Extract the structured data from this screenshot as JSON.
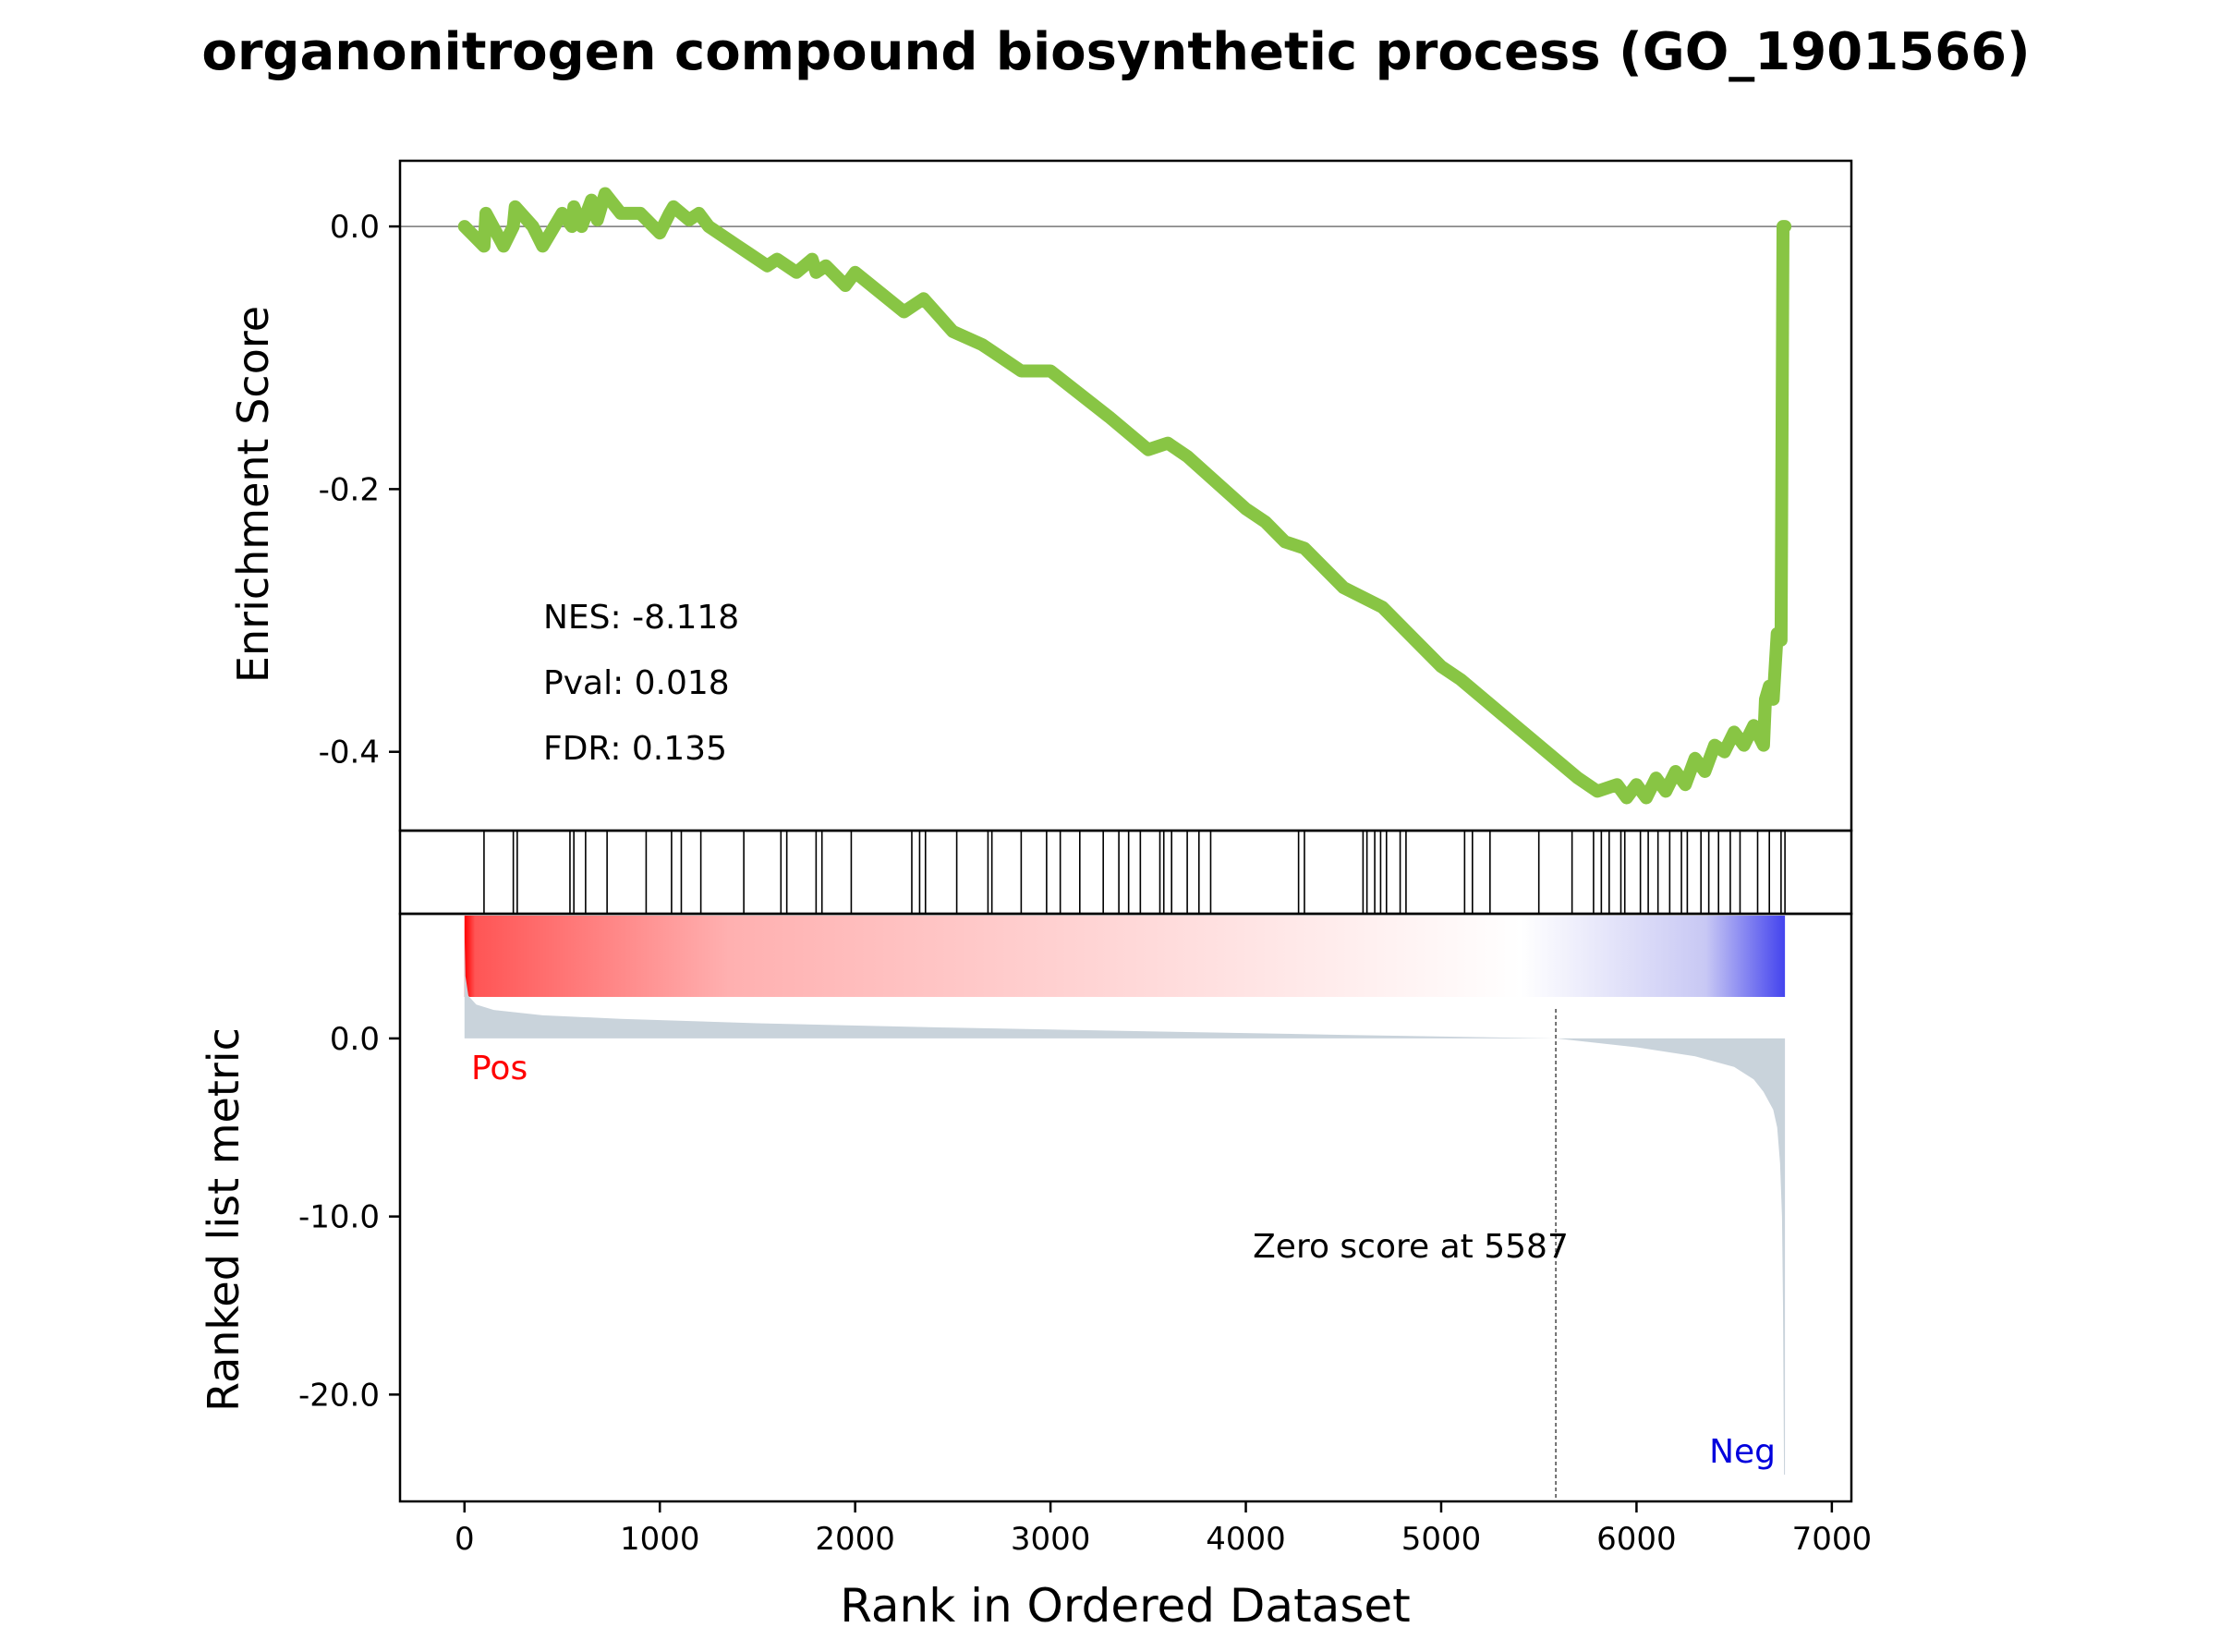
{
  "chart_data": {
    "type": "line",
    "title": "organonitrogen compound biosynthetic process (GO_1901566)",
    "xlabel": "Rank in Ordered Dataset",
    "xlim": [
      -330,
      7100
    ],
    "xticks": [
      0,
      1000,
      2000,
      3000,
      4000,
      5000,
      6000,
      7000
    ],
    "xtick_labels": [
      "0",
      "1000",
      "2000",
      "3000",
      "4000",
      "5000",
      "6000",
      "7000"
    ],
    "colors": {
      "es_line": "#88c544",
      "metric_fill": "#c9d3db",
      "pos": "#ff0000",
      "neg": "#0000dd",
      "heat_pos": "#ff0000",
      "heat_neg": "#4444ee"
    },
    "enrichment": {
      "ylabel": "Enrichment Score",
      "ylim": [
        -0.46,
        0.05
      ],
      "yticks": [
        0.0,
        -0.2,
        -0.4
      ],
      "ytick_labels": [
        "0.0",
        "-0.2",
        "-0.4"
      ],
      "x": [
        0,
        100,
        110,
        200,
        250,
        260,
        350,
        400,
        500,
        550,
        560,
        600,
        650,
        680,
        720,
        800,
        900,
        1000,
        1050,
        1070,
        1150,
        1200,
        1250,
        1400,
        1450,
        1550,
        1600,
        1700,
        1780,
        1800,
        1850,
        1950,
        2000,
        2250,
        2350,
        2500,
        2650,
        2700,
        2850,
        3000,
        3300,
        3500,
        3600,
        3700,
        4000,
        4100,
        4200,
        4300,
        4400,
        4500,
        4700,
        4800,
        5000,
        5100,
        5300,
        5500,
        5700,
        5800,
        5900,
        5950,
        6000,
        6050,
        6100,
        6150,
        6200,
        6250,
        6300,
        6350,
        6400,
        6450,
        6500,
        6550,
        6600,
        6650,
        6660,
        6680,
        6700,
        6720,
        6740,
        6750,
        6760
      ],
      "values": [
        0.0,
        -0.015,
        0.01,
        -0.015,
        0.0,
        0.015,
        0.0,
        -0.015,
        0.01,
        0.0,
        0.015,
        0.0,
        0.02,
        0.005,
        0.025,
        0.01,
        0.01,
        -0.005,
        0.01,
        0.015,
        0.005,
        0.01,
        0.0,
        -0.015,
        -0.02,
        -0.03,
        -0.025,
        -0.035,
        -0.025,
        -0.035,
        -0.03,
        -0.045,
        -0.035,
        -0.065,
        -0.055,
        -0.08,
        -0.09,
        -0.095,
        -0.11,
        -0.11,
        -0.145,
        -0.17,
        -0.165,
        -0.175,
        -0.215,
        -0.225,
        -0.24,
        -0.245,
        -0.26,
        -0.275,
        -0.29,
        -0.305,
        -0.335,
        -0.345,
        -0.37,
        -0.395,
        -0.42,
        -0.43,
        -0.425,
        -0.435,
        -0.425,
        -0.435,
        -0.42,
        -0.43,
        -0.415,
        -0.425,
        -0.405,
        -0.415,
        -0.395,
        -0.4,
        -0.385,
        -0.395,
        -0.38,
        -0.395,
        -0.36,
        -0.35,
        -0.36,
        -0.31,
        -0.315,
        0.0,
        0.0
      ]
    },
    "hits": [
      100,
      250,
      270,
      540,
      560,
      620,
      730,
      930,
      1060,
      1110,
      1210,
      1430,
      1620,
      1650,
      1800,
      1830,
      1980,
      2290,
      2330,
      2360,
      2520,
      2680,
      2700,
      2850,
      2980,
      3050,
      3150,
      3270,
      3350,
      3400,
      3460,
      3560,
      3580,
      3620,
      3700,
      3760,
      3820,
      4270,
      4300,
      4600,
      4620,
      4660,
      4690,
      4720,
      4790,
      4820,
      5120,
      5160,
      5250,
      5500,
      5670,
      5780,
      5820,
      5860,
      5920,
      5940,
      6020,
      6060,
      6110,
      6170,
      6230,
      6260,
      6330,
      6370,
      6420,
      6480,
      6530,
      6620,
      6680,
      6740,
      6760
    ],
    "metric": {
      "ylabel": "Ranked list metric",
      "ylim": [
        -26.0,
        7.0
      ],
      "yticks": [
        0.0,
        -10.0,
        -20.0
      ],
      "ytick_labels": [
        "0.0",
        "-10.0",
        "-20.0"
      ],
      "x": [
        0,
        5,
        20,
        60,
        150,
        400,
        800,
        1500,
        2500,
        3500,
        4500,
        5587,
        6000,
        6300,
        6500,
        6600,
        6650,
        6700,
        6720,
        6735,
        6745,
        6750,
        6755,
        6760
      ],
      "values": [
        6.0,
        3.5,
        2.4,
        1.9,
        1.6,
        1.3,
        1.1,
        0.85,
        0.6,
        0.4,
        0.2,
        0.0,
        -0.5,
        -1.0,
        -1.6,
        -2.3,
        -3.0,
        -4.0,
        -5.0,
        -7.0,
        -10.0,
        -15.0,
        -24.5,
        -24.5
      ]
    },
    "zero_cross": 5587,
    "annotations": {
      "nes": "NES: -8.118",
      "pval": "Pval: 0.018",
      "fdr": "FDR: 0.135",
      "pos": "Pos",
      "neg": "Neg",
      "zero": "Zero score at 5587"
    }
  }
}
